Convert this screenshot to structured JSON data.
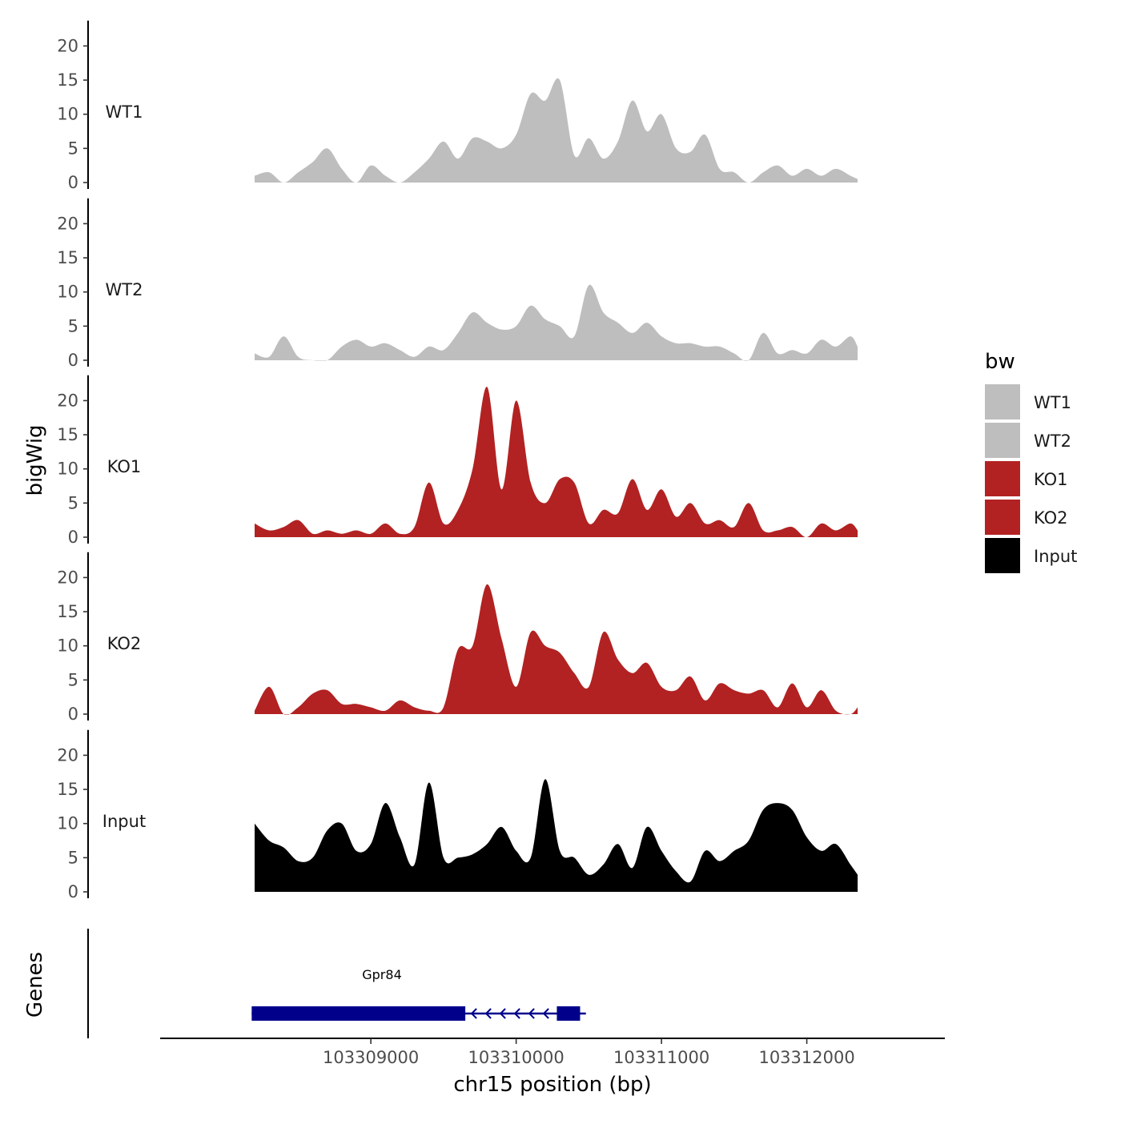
{
  "chart_data": {
    "type": "area",
    "title": "",
    "xlabel": "chr15 position (bp)",
    "ylabel": "bigWig",
    "xlim": [
      103307550,
      103312950
    ],
    "ylim": [
      0,
      23
    ],
    "x_ticks": [
      103309000,
      103310000,
      103311000,
      103312000
    ],
    "x_tick_labels": [
      "103309000",
      "103310000",
      "103311000",
      "103312000"
    ],
    "y_ticks": [
      0,
      5,
      10,
      15,
      20
    ],
    "y_tick_labels": [
      "0",
      "5",
      "10",
      "15",
      "20"
    ],
    "grid": false,
    "legend": {
      "title": "bw",
      "position": "right",
      "entries": [
        {
          "name": "WT1",
          "color": "#bebebe"
        },
        {
          "name": "WT2",
          "color": "#bebebe"
        },
        {
          "name": "KO1",
          "color": "#b22222"
        },
        {
          "name": "KO2",
          "color": "#b22222"
        },
        {
          "name": "Input",
          "color": "#000000"
        }
      ]
    },
    "x": [
      103308200,
      103308300,
      103308400,
      103308500,
      103308600,
      103308700,
      103308800,
      103308900,
      103309000,
      103309100,
      103309200,
      103309300,
      103309400,
      103309500,
      103309600,
      103309700,
      103309800,
      103309900,
      103310000,
      103310100,
      103310200,
      103310300,
      103310400,
      103310500,
      103310600,
      103310700,
      103310800,
      103310900,
      103311000,
      103311100,
      103311200,
      103311300,
      103311400,
      103311500,
      103311600,
      103311700,
      103311800,
      103311900,
      103312000,
      103312100,
      103312200,
      103312300,
      103312350
    ],
    "series": [
      {
        "name": "WT1",
        "color": "#bebebe",
        "values": [
          1.0,
          1.5,
          0,
          1.5,
          3.0,
          5.0,
          2.0,
          0,
          2.5,
          1.0,
          0,
          1.5,
          3.5,
          6.0,
          3.5,
          6.5,
          6.0,
          5.0,
          7.0,
          13.0,
          12.0,
          15.0,
          4.0,
          6.5,
          3.5,
          6.0,
          12.0,
          7.5,
          10.0,
          5.0,
          4.5,
          7.0,
          2.0,
          1.5,
          0,
          1.5,
          2.5,
          1.0,
          2.0,
          1.0,
          2.0,
          1.0,
          0.5
        ]
      },
      {
        "name": "WT2",
        "color": "#bebebe",
        "values": [
          1.0,
          0.5,
          3.5,
          0.5,
          0,
          0,
          2.0,
          3.0,
          2.0,
          2.5,
          1.5,
          0.5,
          2.0,
          1.5,
          4.0,
          7.0,
          5.5,
          4.5,
          5.0,
          8.0,
          6.0,
          5.0,
          3.5,
          11.0,
          7.0,
          5.5,
          4.0,
          5.5,
          3.5,
          2.5,
          2.5,
          2.0,
          2.0,
          1.0,
          0,
          4.0,
          1.0,
          1.5,
          1.0,
          3.0,
          2.0,
          3.5,
          2.0
        ]
      },
      {
        "name": "KO1",
        "color": "#b22222",
        "values": [
          2.0,
          1.0,
          1.5,
          2.5,
          0.5,
          1.0,
          0.5,
          1.0,
          0.5,
          2.0,
          0.5,
          1.5,
          8.0,
          2.0,
          4.0,
          10.0,
          22.0,
          7.0,
          20.0,
          8.0,
          5.0,
          8.5,
          8.0,
          2.0,
          4.0,
          3.5,
          8.5,
          4.0,
          7.0,
          3.0,
          5.0,
          2.0,
          2.5,
          1.5,
          5.0,
          1.0,
          1.0,
          1.5,
          0,
          2.0,
          1.0,
          2.0,
          1.0
        ]
      },
      {
        "name": "KO2",
        "color": "#b22222",
        "values": [
          0.5,
          4.0,
          0,
          1.0,
          3.0,
          3.5,
          1.5,
          1.5,
          1.0,
          0.5,
          2.0,
          1.0,
          0.5,
          1.0,
          9.5,
          10.0,
          19.0,
          11.0,
          4.0,
          12.0,
          10.0,
          9.0,
          6.0,
          4.0,
          12.0,
          8.0,
          6.0,
          7.5,
          4.0,
          3.5,
          5.5,
          2.0,
          4.5,
          3.5,
          3.0,
          3.5,
          1.0,
          4.5,
          1.0,
          3.5,
          0.5,
          0,
          1.0
        ]
      },
      {
        "name": "Input",
        "color": "#000000",
        "values": [
          10.0,
          7.5,
          6.5,
          4.5,
          5.0,
          9.0,
          10.0,
          6.0,
          7.0,
          13.0,
          8.0,
          4.0,
          16.0,
          5.0,
          5.0,
          5.5,
          7.0,
          9.5,
          6.0,
          5.0,
          16.5,
          6.0,
          5.0,
          2.5,
          4.0,
          7.0,
          3.5,
          9.5,
          6.0,
          3.0,
          1.5,
          6.0,
          4.5,
          6.0,
          7.5,
          12.0,
          13.0,
          12.0,
          8.0,
          6.0,
          7.0,
          4.0,
          2.5
        ]
      }
    ],
    "genes": [
      {
        "name": "Gpr84",
        "strand": "-",
        "start": 103308180,
        "end": 103310480,
        "utr_left": [
          103308180,
          103309650
        ],
        "utr_right": [
          103310280,
          103310440
        ]
      }
    ],
    "genes_axis_label": "Genes"
  }
}
